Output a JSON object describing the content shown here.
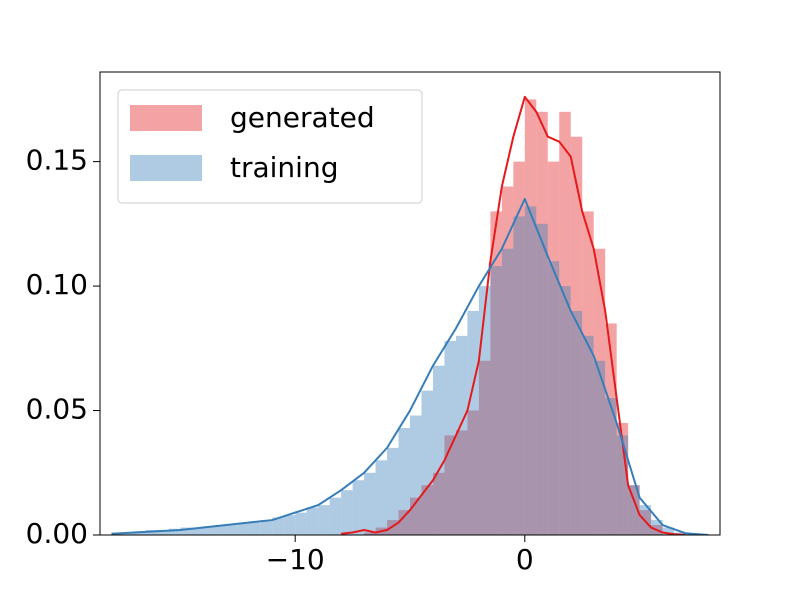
{
  "chart_data": {
    "type": "histogram",
    "xlim": [
      -18.5,
      8.5
    ],
    "ylim": [
      0,
      0.186
    ],
    "xticks": [
      {
        "value": -10,
        "label": "−10"
      },
      0
    ],
    "yticks": [
      {
        "value": 0,
        "label": "0.00"
      },
      0.05,
      {
        "value": 0.1,
        "label": "0.10"
      },
      0.15
    ],
    "legend": "upper left",
    "series": [
      {
        "name": "generated",
        "color": "#e41a1c",
        "bins": [
          -7,
          -6.5,
          -6,
          -5.5,
          -5,
          -4.5,
          -4,
          -3.5,
          -3,
          -2.5,
          -2,
          -1.5,
          -1,
          -0.5,
          0,
          0.5,
          1,
          1.5,
          2,
          2.5,
          3,
          3.5,
          4,
          4.5,
          5,
          5.5,
          6
        ],
        "values": [
          0.001,
          0.003,
          0.006,
          0.01,
          0.015,
          0.02,
          0.025,
          0.04,
          0.042,
          0.05,
          0.07,
          0.13,
          0.14,
          0.15,
          0.175,
          0.17,
          0.15,
          0.17,
          0.16,
          0.13,
          0.115,
          0.085,
          0.045,
          0.02,
          0.01,
          0.004
        ],
        "kde_x": [
          -8,
          -7.5,
          -7,
          -6.5,
          -6,
          -5.5,
          -5,
          -4.5,
          -4,
          -3.5,
          -3,
          -2.5,
          -2,
          -1.5,
          -1,
          -0.5,
          0,
          0.5,
          1,
          1.5,
          2,
          2.5,
          3,
          3.5,
          4,
          4.5,
          5,
          5.5,
          6,
          6.5,
          7
        ],
        "kde_y": [
          0.0005,
          0.001,
          0.002,
          0.001,
          0.002,
          0.005,
          0.01,
          0.016,
          0.022,
          0.03,
          0.04,
          0.05,
          0.07,
          0.11,
          0.14,
          0.16,
          0.176,
          0.17,
          0.16,
          0.158,
          0.152,
          0.13,
          0.115,
          0.09,
          0.055,
          0.02,
          0.008,
          0.003,
          0.001,
          0.0003,
          0
        ]
      },
      {
        "name": "training",
        "color": "#377eb8",
        "bins": [
          -18,
          -17.5,
          -17,
          -16.5,
          -16,
          -15.5,
          -15,
          -14.5,
          -14,
          -13.5,
          -13,
          -12.5,
          -12,
          -11.5,
          -11,
          -10.5,
          -10,
          -9.5,
          -9,
          -8.5,
          -8,
          -7.5,
          -7,
          -6.5,
          -6,
          -5.5,
          -5,
          -4.5,
          -4,
          -3.5,
          -3,
          -2.5,
          -2,
          -1.5,
          -1,
          -0.5,
          0,
          0.5,
          1,
          1.5,
          2,
          2.5,
          3,
          3.5,
          4,
          4.5,
          5,
          5.5,
          6,
          6.5,
          7
        ],
        "values": [
          0.001,
          0.001,
          0.0015,
          0.002,
          0.002,
          0.0025,
          0.003,
          0.003,
          0.0035,
          0.004,
          0.004,
          0.005,
          0.005,
          0.006,
          0.007,
          0.008,
          0.009,
          0.011,
          0.012,
          0.015,
          0.018,
          0.022,
          0.025,
          0.03,
          0.035,
          0.043,
          0.048,
          0.058,
          0.068,
          0.078,
          0.08,
          0.09,
          0.1,
          0.108,
          0.115,
          0.128,
          0.132,
          0.125,
          0.11,
          0.1,
          0.09,
          0.08,
          0.07,
          0.055,
          0.04,
          0.02,
          0.012,
          0.006,
          0.003,
          0.001
        ],
        "kde_x": [
          -18,
          -17,
          -16,
          -15,
          -14,
          -13,
          -12,
          -11,
          -10,
          -9,
          -8,
          -7,
          -6,
          -5,
          -4,
          -3,
          -2,
          -1,
          0,
          1,
          2,
          3,
          4,
          5,
          6,
          7,
          8
        ],
        "kde_y": [
          0.0005,
          0.001,
          0.0015,
          0.002,
          0.003,
          0.004,
          0.005,
          0.006,
          0.009,
          0.012,
          0.018,
          0.025,
          0.035,
          0.05,
          0.068,
          0.083,
          0.1,
          0.115,
          0.135,
          0.112,
          0.09,
          0.072,
          0.045,
          0.015,
          0.004,
          0.0007,
          0
        ]
      }
    ]
  }
}
